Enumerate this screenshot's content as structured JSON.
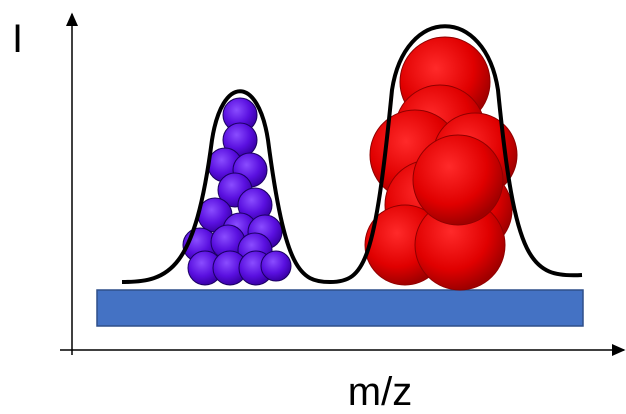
{
  "axis_labels": {
    "y": "I",
    "x": "m/z"
  }
}
